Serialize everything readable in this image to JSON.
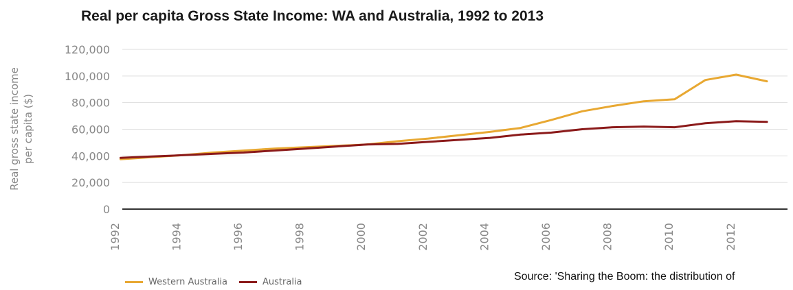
{
  "chart_data": {
    "type": "line",
    "title": "Real per capita Gross State Income: WA and Australia, 1992 to 2013",
    "ylabel": "Real gross state income per capita ($)",
    "ylabel_lines": [
      "Real gross state income",
      "per capita ($)"
    ],
    "xlabel": "",
    "ylim": [
      0,
      120000
    ],
    "y_ticks": [
      "0",
      "20,000",
      "40,000",
      "60,000",
      "80,000",
      "100,000",
      "120,000"
    ],
    "y_tick_values": [
      0,
      20000,
      40000,
      60000,
      80000,
      100000,
      120000
    ],
    "x_tick_labels": [
      "1992",
      "1994",
      "1996",
      "1998",
      "2000",
      "2002",
      "2004",
      "2006",
      "2008",
      "2010",
      "2012"
    ],
    "x": [
      1992,
      1993,
      1994,
      1995,
      1996,
      1997,
      1998,
      1999,
      2000,
      2001,
      2002,
      2003,
      2004,
      2005,
      2006,
      2007,
      2008,
      2009,
      2010,
      2011,
      2012,
      2013
    ],
    "series": [
      {
        "name": "Western Australia",
        "color": "#e8a832",
        "values": [
          37500,
          39000,
          40500,
          42500,
          44000,
          45500,
          46500,
          47500,
          48500,
          51000,
          53000,
          55500,
          58000,
          61000,
          67000,
          73500,
          77500,
          81000,
          82500,
          97000,
          101000,
          96000
        ]
      },
      {
        "name": "Australia",
        "color": "#8b1a1a",
        "values": [
          38500,
          39500,
          40500,
          41500,
          42500,
          44000,
          45500,
          47000,
          48500,
          49000,
          50500,
          52000,
          53500,
          56000,
          57500,
          60000,
          61500,
          62000,
          61500,
          64500,
          66000,
          65500
        ]
      }
    ],
    "grid": true,
    "legend_position": "bottom-left"
  },
  "source_text": "Source: 'Sharing the Boom: the distribution of"
}
